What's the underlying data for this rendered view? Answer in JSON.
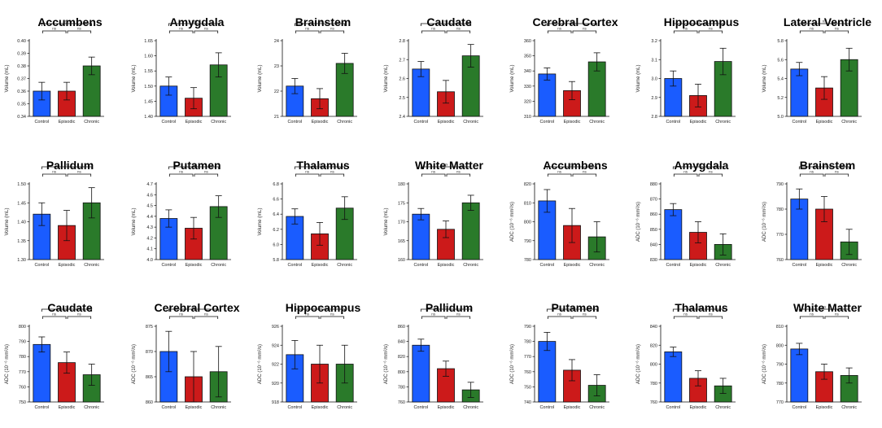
{
  "colors": {
    "control": "#1a5cff",
    "episodic": "#cc1a1a",
    "chronic": "#2a7a2a",
    "outline": "#111111"
  },
  "chart_data": [
    {
      "type": "bar",
      "title": "Accumbens",
      "ylabel": "Volume (mL)",
      "categories": [
        "Control",
        "Episodic",
        "Chronic"
      ],
      "values": [
        0.36,
        0.36,
        0.38
      ],
      "errors": [
        0.007,
        0.007,
        0.007
      ],
      "ylim": [
        0.34,
        0.4
      ],
      "yticks": [
        "0.34",
        "0.35",
        "0.36",
        "0.37",
        "0.38",
        "0.39",
        "0.40"
      ],
      "sig": [
        "ns",
        "ns",
        "ns"
      ]
    },
    {
      "type": "bar",
      "title": "Amygdala",
      "ylabel": "Volume (mL)",
      "categories": [
        "Control",
        "Episodic",
        "Chronic"
      ],
      "values": [
        1.5,
        1.46,
        1.57
      ],
      "errors": [
        0.03,
        0.035,
        0.04
      ],
      "ylim": [
        1.4,
        1.65
      ],
      "yticks": [
        "1.40",
        "1.45",
        "1.50",
        "1.55",
        "1.60",
        "1.65"
      ],
      "sig": [
        "ns",
        "ns",
        "ns"
      ]
    },
    {
      "type": "bar",
      "title": "Brainstem",
      "ylabel": "Volume (mL)",
      "categories": [
        "Control",
        "Episodic",
        "Chronic"
      ],
      "values": [
        22.2,
        21.7,
        23.1
      ],
      "errors": [
        0.3,
        0.4,
        0.4
      ],
      "ylim": [
        21,
        24
      ],
      "yticks": [
        "21",
        "22",
        "23",
        "24"
      ],
      "sig": [
        "ns",
        "ns",
        "ns"
      ]
    },
    {
      "type": "bar",
      "title": "Caudate",
      "ylabel": "Volume (mL)",
      "categories": [
        "Control",
        "Episodic",
        "Chronic"
      ],
      "values": [
        2.65,
        2.53,
        2.72
      ],
      "errors": [
        0.04,
        0.06,
        0.06
      ],
      "ylim": [
        2.4,
        2.8
      ],
      "yticks": [
        "2.4",
        "2.5",
        "2.6",
        "2.7",
        "2.8"
      ],
      "sig": [
        "ns",
        "ns",
        "ns"
      ]
    },
    {
      "type": "bar",
      "title": "Cerebral Cortex",
      "ylabel": "Volume (mL)",
      "categories": [
        "Control",
        "Episodic",
        "Chronic"
      ],
      "values": [
        338,
        327,
        346
      ],
      "errors": [
        4,
        6,
        6
      ],
      "ylim": [
        310,
        360
      ],
      "yticks": [
        "310",
        "320",
        "330",
        "340",
        "350",
        "360"
      ],
      "sig": [
        "ns",
        "ns",
        "ns"
      ]
    },
    {
      "type": "bar",
      "title": "Hippocampus",
      "ylabel": "Volume (mL)",
      "categories": [
        "Control",
        "Episodic",
        "Chronic"
      ],
      "values": [
        3.0,
        2.91,
        3.09
      ],
      "errors": [
        0.04,
        0.06,
        0.07
      ],
      "ylim": [
        2.8,
        3.2
      ],
      "yticks": [
        "2.8",
        "2.9",
        "3.0",
        "3.1",
        "3.2"
      ],
      "sig": [
        "ns",
        "ns",
        "ns"
      ]
    },
    {
      "type": "bar",
      "title": "Lateral Ventricle",
      "ylabel": "Volume (mL)",
      "categories": [
        "Control",
        "Episodic",
        "Chronic"
      ],
      "values": [
        5.5,
        5.3,
        5.6
      ],
      "errors": [
        0.07,
        0.12,
        0.12
      ],
      "ylim": [
        5.0,
        5.8
      ],
      "yticks": [
        "5.0",
        "5.2",
        "5.4",
        "5.6",
        "5.8"
      ],
      "sig": [
        "ns",
        "ns",
        "ns"
      ]
    },
    {
      "type": "bar",
      "title": "Pallidum",
      "ylabel": "Volume (mL)",
      "categories": [
        "Control",
        "Episodic",
        "Chronic"
      ],
      "values": [
        1.42,
        1.39,
        1.45
      ],
      "errors": [
        0.03,
        0.04,
        0.04
      ],
      "ylim": [
        1.3,
        1.5
      ],
      "yticks": [
        "1.30",
        "1.35",
        "1.40",
        "1.45",
        "1.50"
      ],
      "sig": [
        "ns",
        "ns",
        "ns"
      ]
    },
    {
      "type": "bar",
      "title": "Putamen",
      "ylabel": "Volume (mL)",
      "categories": [
        "Control",
        "Episodic",
        "Chronic"
      ],
      "values": [
        4.38,
        4.29,
        4.49
      ],
      "errors": [
        0.08,
        0.1,
        0.1
      ],
      "ylim": [
        4.0,
        4.7
      ],
      "yticks": [
        "4.0",
        "4.1",
        "4.2",
        "4.3",
        "4.4",
        "4.5",
        "4.6",
        "4.7"
      ],
      "sig": [
        "ns",
        "ns",
        "ns"
      ]
    },
    {
      "type": "bar",
      "title": "Thalamus",
      "ylabel": "Volume (mL)",
      "categories": [
        "Control",
        "Episodic",
        "Chronic"
      ],
      "values": [
        6.37,
        6.14,
        6.48
      ],
      "errors": [
        0.1,
        0.15,
        0.15
      ],
      "ylim": [
        5.8,
        6.8
      ],
      "yticks": [
        "5.8",
        "6.0",
        "6.2",
        "6.4",
        "6.6",
        "6.8"
      ],
      "sig": [
        "ns",
        "ns",
        "ns"
      ]
    },
    {
      "type": "bar",
      "title": "White Matter",
      "ylabel": "Volume (mL)",
      "categories": [
        "Control",
        "Episodic",
        "Chronic"
      ],
      "values": [
        172,
        168,
        175
      ],
      "errors": [
        1.5,
        2.2,
        2.0
      ],
      "ylim": [
        160,
        180
      ],
      "yticks": [
        "160",
        "165",
        "170",
        "175",
        "180"
      ],
      "sig": [
        "ns",
        "ns",
        "ns"
      ]
    },
    {
      "type": "bar",
      "title": "Accumbens",
      "ylabel": "ADC (10⁻⁶ mm²/s)",
      "categories": [
        "Control",
        "Episodic",
        "Chronic"
      ],
      "values": [
        811,
        798,
        792
      ],
      "errors": [
        6,
        9,
        8
      ],
      "ylim": [
        780,
        820
      ],
      "yticks": [
        "780",
        "790",
        "800",
        "810",
        "820"
      ],
      "sig": [
        "ns",
        "ns",
        "ns"
      ]
    },
    {
      "type": "bar",
      "title": "Amygdala",
      "ylabel": "ADC (10⁻⁶ mm²/s)",
      "categories": [
        "Control",
        "Episodic",
        "Chronic"
      ],
      "values": [
        863,
        848,
        840
      ],
      "errors": [
        4,
        7,
        7
      ],
      "ylim": [
        830,
        880
      ],
      "yticks": [
        "830",
        "840",
        "850",
        "860",
        "870",
        "880"
      ],
      "sig": [
        "ns",
        "ns",
        "ns"
      ]
    },
    {
      "type": "bar",
      "title": "Brainstem",
      "ylabel": "ADC (10⁻⁶ mm²/s)",
      "categories": [
        "Control",
        "Episodic",
        "Chronic"
      ],
      "values": [
        784,
        780,
        767
      ],
      "errors": [
        4,
        5,
        5
      ],
      "ylim": [
        760,
        790
      ],
      "yticks": [
        "760",
        "770",
        "780",
        "790"
      ],
      "sig": [
        "ns",
        "ns",
        "ns"
      ]
    },
    {
      "type": "bar",
      "title": "Caudate",
      "ylabel": "ADC (10⁻⁶ mm²/s)",
      "categories": [
        "Control",
        "Episodic",
        "Chronic"
      ],
      "values": [
        788,
        776,
        768
      ],
      "errors": [
        5,
        7,
        7
      ],
      "ylim": [
        750,
        800
      ],
      "yticks": [
        "750",
        "760",
        "770",
        "780",
        "790",
        "800"
      ],
      "sig": [
        "ns",
        "ns",
        "ns"
      ]
    },
    {
      "type": "bar",
      "title": "Cerebral Cortex",
      "ylabel": "ADC (10⁻⁶ mm²/s)",
      "categories": [
        "Control",
        "Episodic",
        "Chronic"
      ],
      "values": [
        870,
        865,
        866
      ],
      "errors": [
        4,
        5,
        5
      ],
      "ylim": [
        860,
        875
      ],
      "yticks": [
        "860",
        "865",
        "870",
        "875"
      ],
      "sig": [
        "ns",
        "ns",
        "ns"
      ]
    },
    {
      "type": "bar",
      "title": "Hippocampus",
      "ylabel": "ADC (10⁻⁶ mm²/s)",
      "categories": [
        "Control",
        "Episodic",
        "Chronic"
      ],
      "values": [
        923,
        922,
        922
      ],
      "errors": [
        1.5,
        2,
        2
      ],
      "ylim": [
        918,
        926
      ],
      "yticks": [
        "918",
        "920",
        "922",
        "924",
        "926"
      ],
      "sig": [
        "ns",
        "ns",
        "ns"
      ]
    },
    {
      "type": "bar",
      "title": "Pallidum",
      "ylabel": "ADC (10⁻⁶ mm²/s)",
      "categories": [
        "Control",
        "Episodic",
        "Chronic"
      ],
      "values": [
        835,
        804,
        776
      ],
      "errors": [
        8,
        10,
        10
      ],
      "ylim": [
        760,
        860
      ],
      "yticks": [
        "760",
        "780",
        "800",
        "820",
        "840",
        "860"
      ],
      "sig": [
        "ns",
        "ns",
        "ns"
      ]
    },
    {
      "type": "bar",
      "title": "Putamen",
      "ylabel": "ADC (10⁻⁶ mm²/s)",
      "categories": [
        "Control",
        "Episodic",
        "Chronic"
      ],
      "values": [
        780,
        761,
        751
      ],
      "errors": [
        6,
        7,
        7
      ],
      "ylim": [
        740,
        790
      ],
      "yticks": [
        "740",
        "750",
        "760",
        "770",
        "780",
        "790"
      ],
      "sig": [
        "ns",
        "ns",
        "ns"
      ]
    },
    {
      "type": "bar",
      "title": "Thalamus",
      "ylabel": "ADC (10⁻⁶ mm²/s)",
      "categories": [
        "Control",
        "Episodic",
        "Chronic"
      ],
      "values": [
        813,
        785,
        777
      ],
      "errors": [
        5,
        8,
        8
      ],
      "ylim": [
        760,
        840
      ],
      "yticks": [
        "760",
        "780",
        "800",
        "820",
        "840"
      ],
      "sig": [
        "ns",
        "ns",
        "ns"
      ]
    },
    {
      "type": "bar",
      "title": "White Matter",
      "ylabel": "ADC (10⁻⁶ mm²/s)",
      "categories": [
        "Control",
        "Episodic",
        "Chronic"
      ],
      "values": [
        798,
        786,
        784
      ],
      "errors": [
        3,
        4,
        4
      ],
      "ylim": [
        770,
        810
      ],
      "yticks": [
        "770",
        "780",
        "790",
        "800",
        "810"
      ],
      "sig": [
        "ns",
        "ns",
        "ns"
      ]
    }
  ]
}
